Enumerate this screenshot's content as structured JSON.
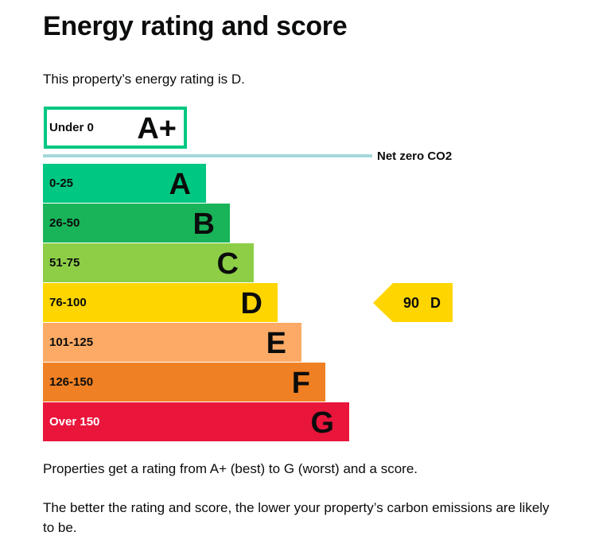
{
  "page": {
    "title": "Energy rating and score",
    "intro": "This property’s energy rating is D.",
    "footer_1": "Properties get a rating from A+ (best) to G (worst) and a score.",
    "footer_2": "The better the rating and score, the lower your property’s carbon emissions are likely to be."
  },
  "chart_data": {
    "type": "bar",
    "top_band": {
      "range": "Under 0",
      "letter": "A+",
      "border_color": "#00c781"
    },
    "net_zero": {
      "label": "Net zero CO2",
      "line_color": "#a3d7d9"
    },
    "bands": [
      {
        "range": "0-25",
        "letter": "A",
        "color": "#00c781",
        "range_color": "#0b0c0c"
      },
      {
        "range": "26-50",
        "letter": "B",
        "color": "#19b459",
        "range_color": "#0b0c0c"
      },
      {
        "range": "51-75",
        "letter": "C",
        "color": "#8dce46",
        "range_color": "#0b0c0c"
      },
      {
        "range": "76-100",
        "letter": "D",
        "color": "#ffd500",
        "range_color": "#0b0c0c"
      },
      {
        "range": "101-125",
        "letter": "E",
        "color": "#fcaa65",
        "range_color": "#0b0c0c"
      },
      {
        "range": "126-150",
        "letter": "F",
        "color": "#ef8023",
        "range_color": "#0b0c0c"
      },
      {
        "range": "Over 150",
        "letter": "G",
        "color": "#e9153b",
        "range_color": "#ffffff"
      }
    ],
    "current": {
      "score": "90",
      "rating": "D",
      "band_index": 3,
      "color": "#ffd500"
    }
  }
}
